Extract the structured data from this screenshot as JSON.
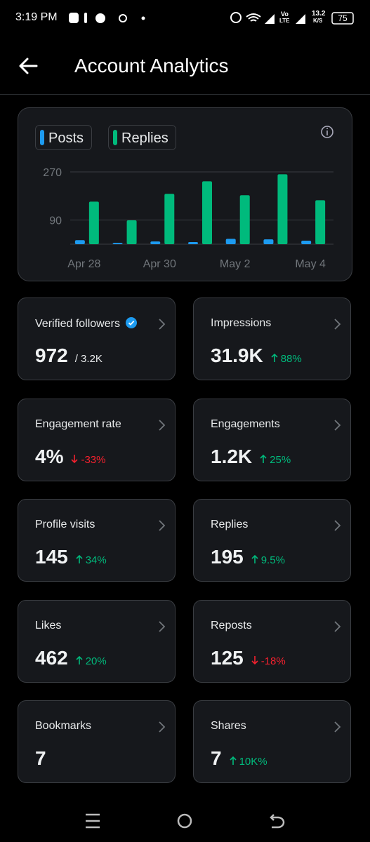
{
  "status_bar": {
    "time": "3:19 PM",
    "network": "Vo",
    "network_type": "LTE",
    "speed": "13.2",
    "speed_unit": "K/S",
    "battery": "75"
  },
  "header": {
    "title": "Account Analytics"
  },
  "chart_data": {
    "type": "bar",
    "categories": [
      "Apr 28",
      null,
      "Apr 30",
      null,
      "May 2",
      null,
      "May 4"
    ],
    "series": [
      {
        "name": "Posts",
        "color": "#1d9bf0",
        "values": [
          15,
          5,
          10,
          8,
          20,
          18,
          13
        ]
      },
      {
        "name": "Replies",
        "color": "#00ba7c",
        "values": [
          159,
          89,
          188,
          235,
          183,
          261,
          164
        ]
      }
    ],
    "ylim": [
      0,
      270
    ],
    "yticks": [
      90,
      270
    ],
    "grid": true
  },
  "cards": [
    {
      "label": "Verified followers",
      "value": "972",
      "total": "/ 3.2K",
      "verified": true
    },
    {
      "label": "Impressions",
      "value": "31.9K",
      "change": "88%",
      "direction": "up"
    },
    {
      "label": "Engagement rate",
      "value": "4%",
      "change": "-33%",
      "direction": "down"
    },
    {
      "label": "Engagements",
      "value": "1.2K",
      "change": "25%",
      "direction": "up"
    },
    {
      "label": "Profile visits",
      "value": "145",
      "change": "34%",
      "direction": "up"
    },
    {
      "label": "Replies",
      "value": "195",
      "change": "9.5%",
      "direction": "up"
    },
    {
      "label": "Likes",
      "value": "462",
      "change": "20%",
      "direction": "up"
    },
    {
      "label": "Reposts",
      "value": "125",
      "change": "-18%",
      "direction": "down"
    },
    {
      "label": "Bookmarks",
      "value": "7"
    },
    {
      "label": "Shares",
      "value": "7",
      "change": "10K%",
      "direction": "up"
    }
  ]
}
